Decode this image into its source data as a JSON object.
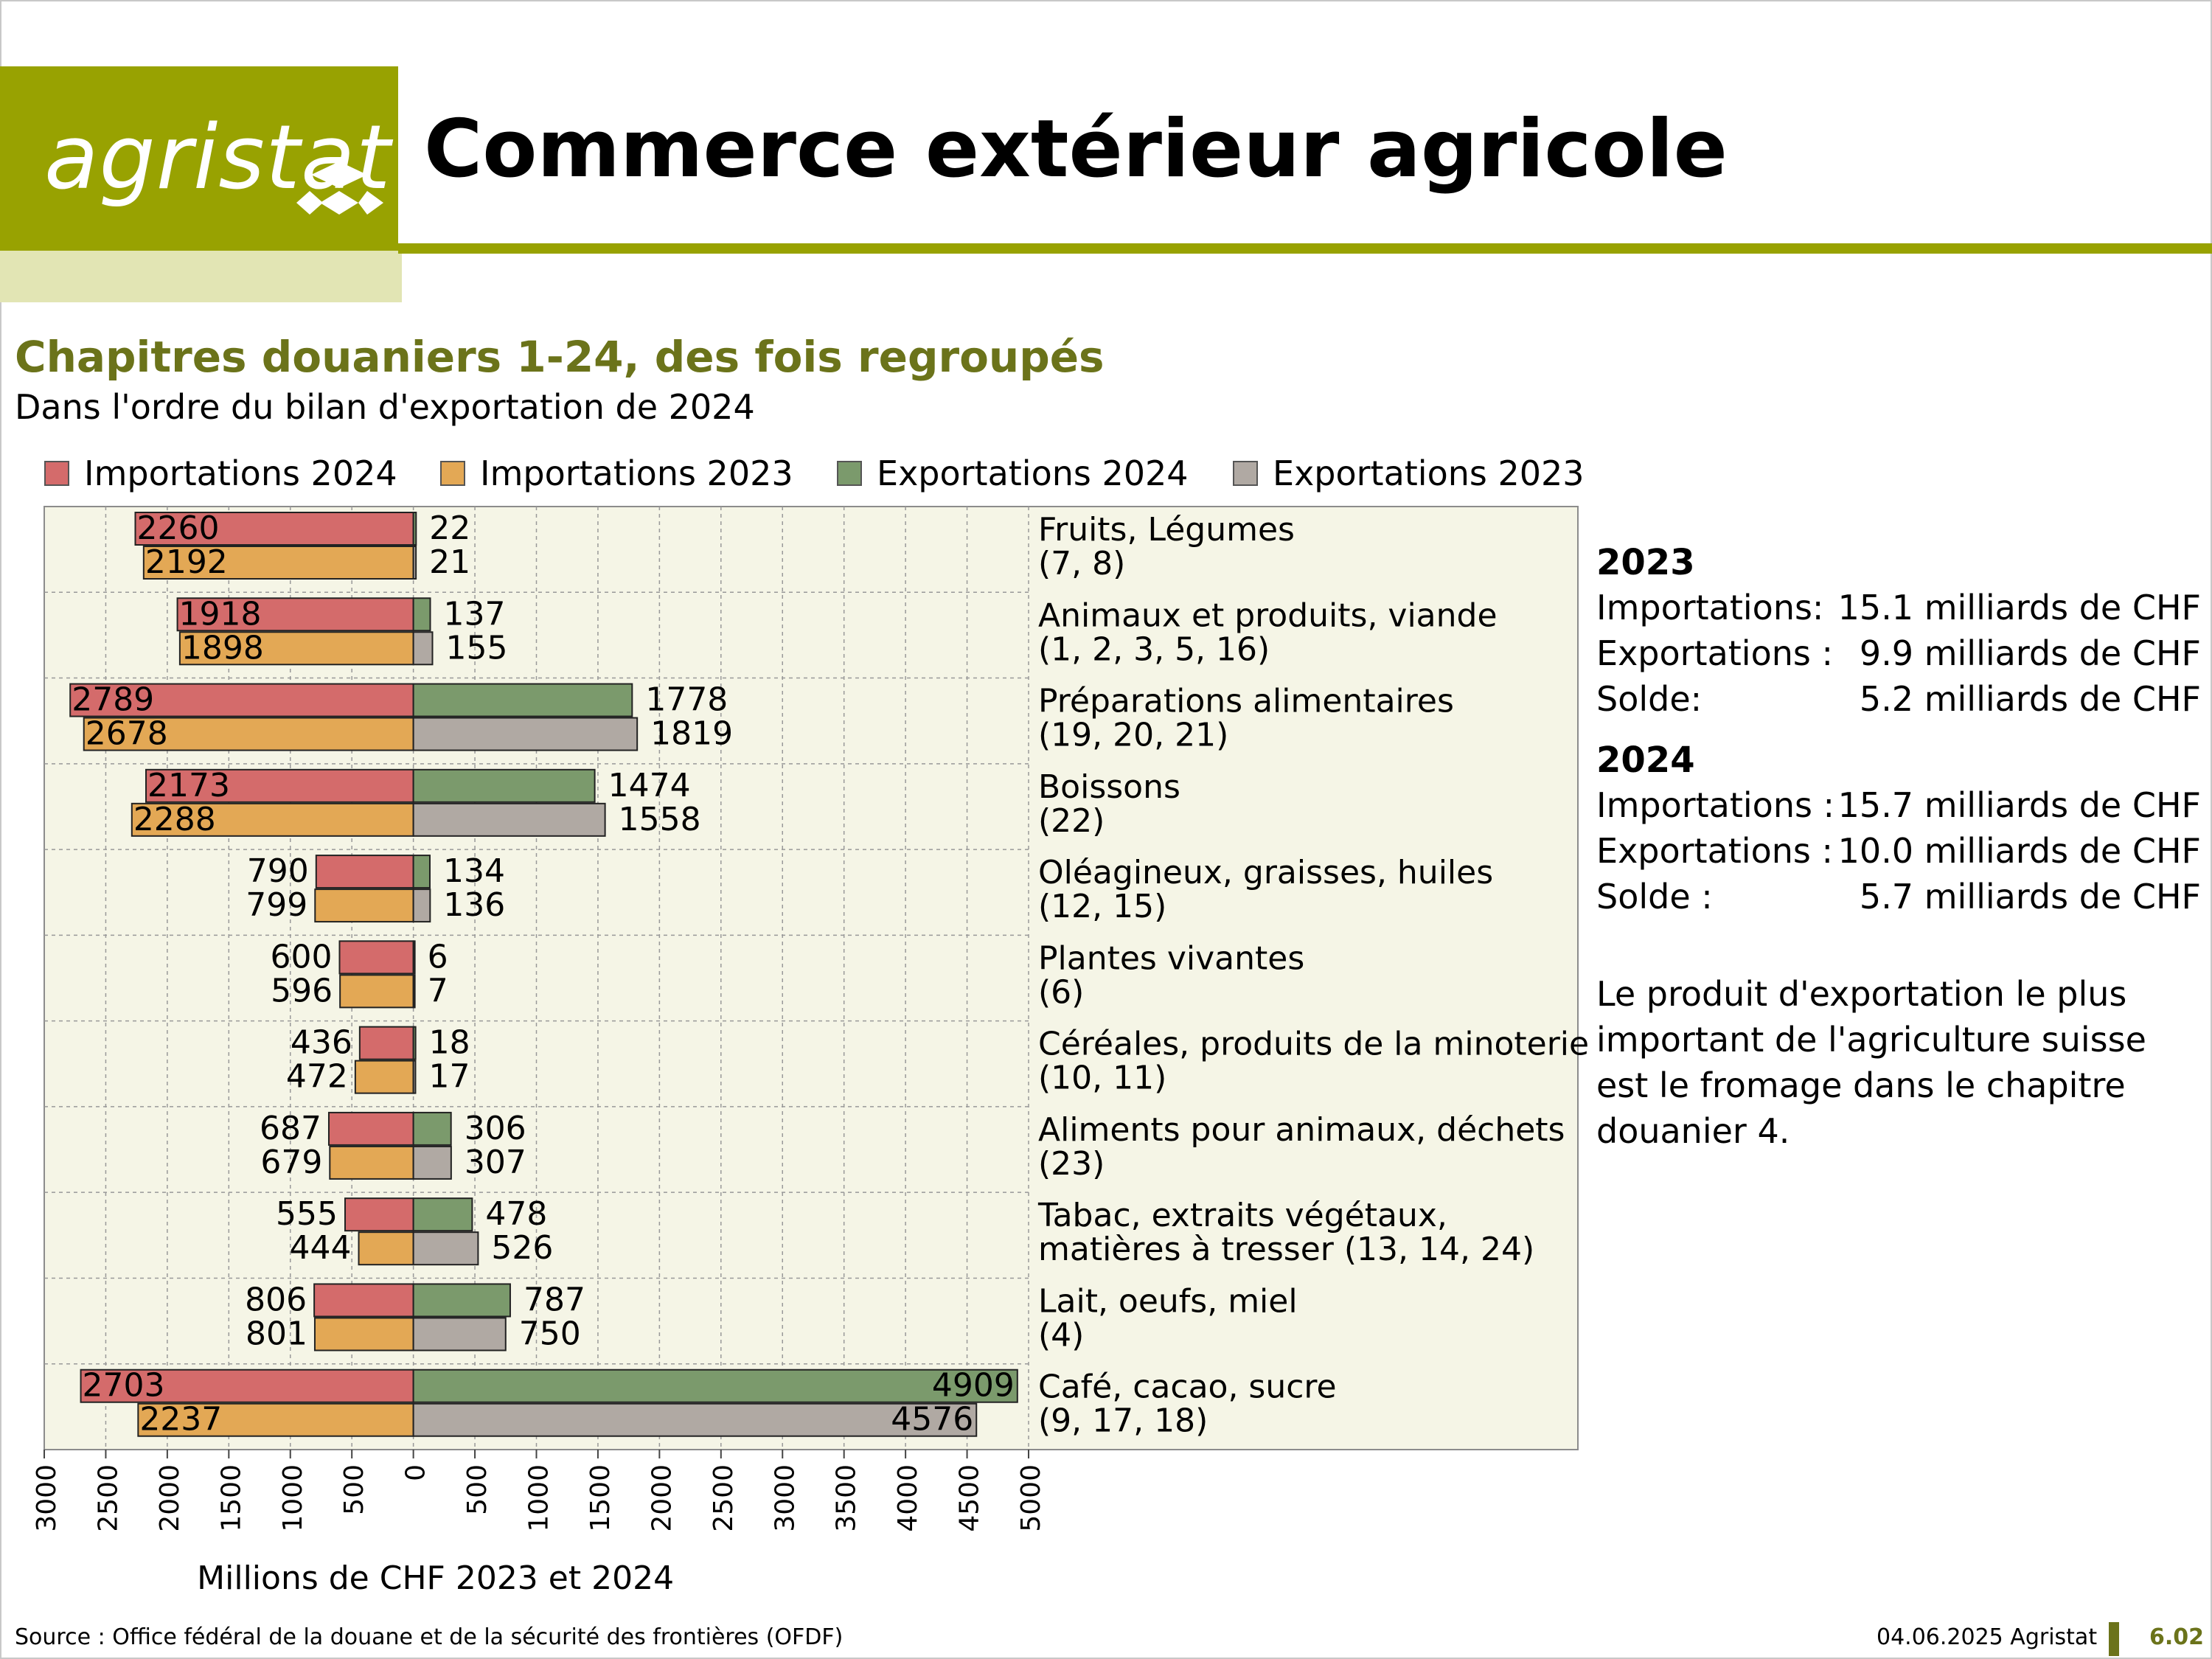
{
  "header": {
    "logo_text": "agristat",
    "title": "Commerce extérieur agricole"
  },
  "subtitle": "Chapitres douaniers 1-24, des fois regroupés",
  "subtitle2": "Dans l'ordre du bilan d'exportation de 2024",
  "legend": [
    {
      "label": "Importations 2024",
      "color": "#d46b6b"
    },
    {
      "label": "Importations 2023",
      "color": "#e3a855"
    },
    {
      "label": "Exportations 2024",
      "color": "#7b9a6c"
    },
    {
      "label": "Exportations 2023",
      "color": "#b0a9a3"
    }
  ],
  "summary": {
    "y2023": {
      "year": "2023",
      "rows": [
        {
          "label": "Importations:",
          "value": "15.1 milliards de CHF"
        },
        {
          "label": "Exportations :",
          "value": "9.9 milliards de CHF"
        },
        {
          "label": "Solde:",
          "value": "5.2 milliards de CHF"
        }
      ]
    },
    "y2024": {
      "year": "2024",
      "rows": [
        {
          "label": "Importations :",
          "value": "15.7 milliards de CHF"
        },
        {
          "label": "Exportations :",
          "value": "10.0 milliards de CHF"
        },
        {
          "label": "Solde :",
          "value": "5.7 milliards de CHF"
        }
      ]
    },
    "note": "Le produit d'exportation le plus important de l'agriculture suisse est le fromage dans le chapitre douanier 4."
  },
  "footer": {
    "source": "Source : Office fédéral de la douane et de la sécurité des frontières (OFDF)",
    "date": "04.06.2025 Agristat",
    "page": "6.02"
  },
  "chart_data": {
    "type": "bar",
    "orientation": "horizontal",
    "xlabel": "Millions de CHF 2023 et 2024",
    "xlim": [
      -3000,
      5000
    ],
    "x_ticks": [
      "3000",
      "2500",
      "2000",
      "1500",
      "1000",
      "500",
      "0",
      "500",
      "1000",
      "1500",
      "2000",
      "2500",
      "3000",
      "3500",
      "4000",
      "4500",
      "5000"
    ],
    "grid": true,
    "categories": [
      {
        "line1": "Fruits, Légumes",
        "line2": "(7, 8)"
      },
      {
        "line1": "Animaux et produits, viande",
        "line2": "(1, 2, 3, 5, 16)"
      },
      {
        "line1": "Préparations alimentaires",
        "line2": "(19, 20, 21)"
      },
      {
        "line1": "Boissons",
        "line2": "(22)"
      },
      {
        "line1": "Oléagineux, graisses, huiles",
        "line2": "(12, 15)"
      },
      {
        "line1": "Plantes vivantes",
        "line2": "(6)"
      },
      {
        "line1": "Céréales, produits de la minoterie",
        "line2": "(10, 11)"
      },
      {
        "line1": "Aliments pour animaux, déchets",
        "line2": "(23)"
      },
      {
        "line1": "Tabac, extraits végétaux,",
        "line2": "matières à tresser (13, 14, 24)"
      },
      {
        "line1": "Lait, oeufs, miel",
        "line2": "(4)"
      },
      {
        "line1": "Café, cacao, sucre",
        "line2": "(9, 17, 18)"
      }
    ],
    "series": [
      {
        "name": "Importations 2024",
        "values": [
          2260,
          1918,
          2789,
          2173,
          790,
          600,
          436,
          687,
          555,
          806,
          2703
        ]
      },
      {
        "name": "Importations 2023",
        "values": [
          2192,
          1898,
          2678,
          2288,
          799,
          596,
          472,
          679,
          444,
          801,
          2237
        ]
      },
      {
        "name": "Exportations 2024",
        "values": [
          22,
          137,
          1778,
          1474,
          134,
          6,
          18,
          306,
          478,
          787,
          4909
        ]
      },
      {
        "name": "Exportations 2023",
        "values": [
          21,
          155,
          1819,
          1558,
          136,
          7,
          17,
          307,
          526,
          750,
          4576
        ]
      }
    ]
  }
}
